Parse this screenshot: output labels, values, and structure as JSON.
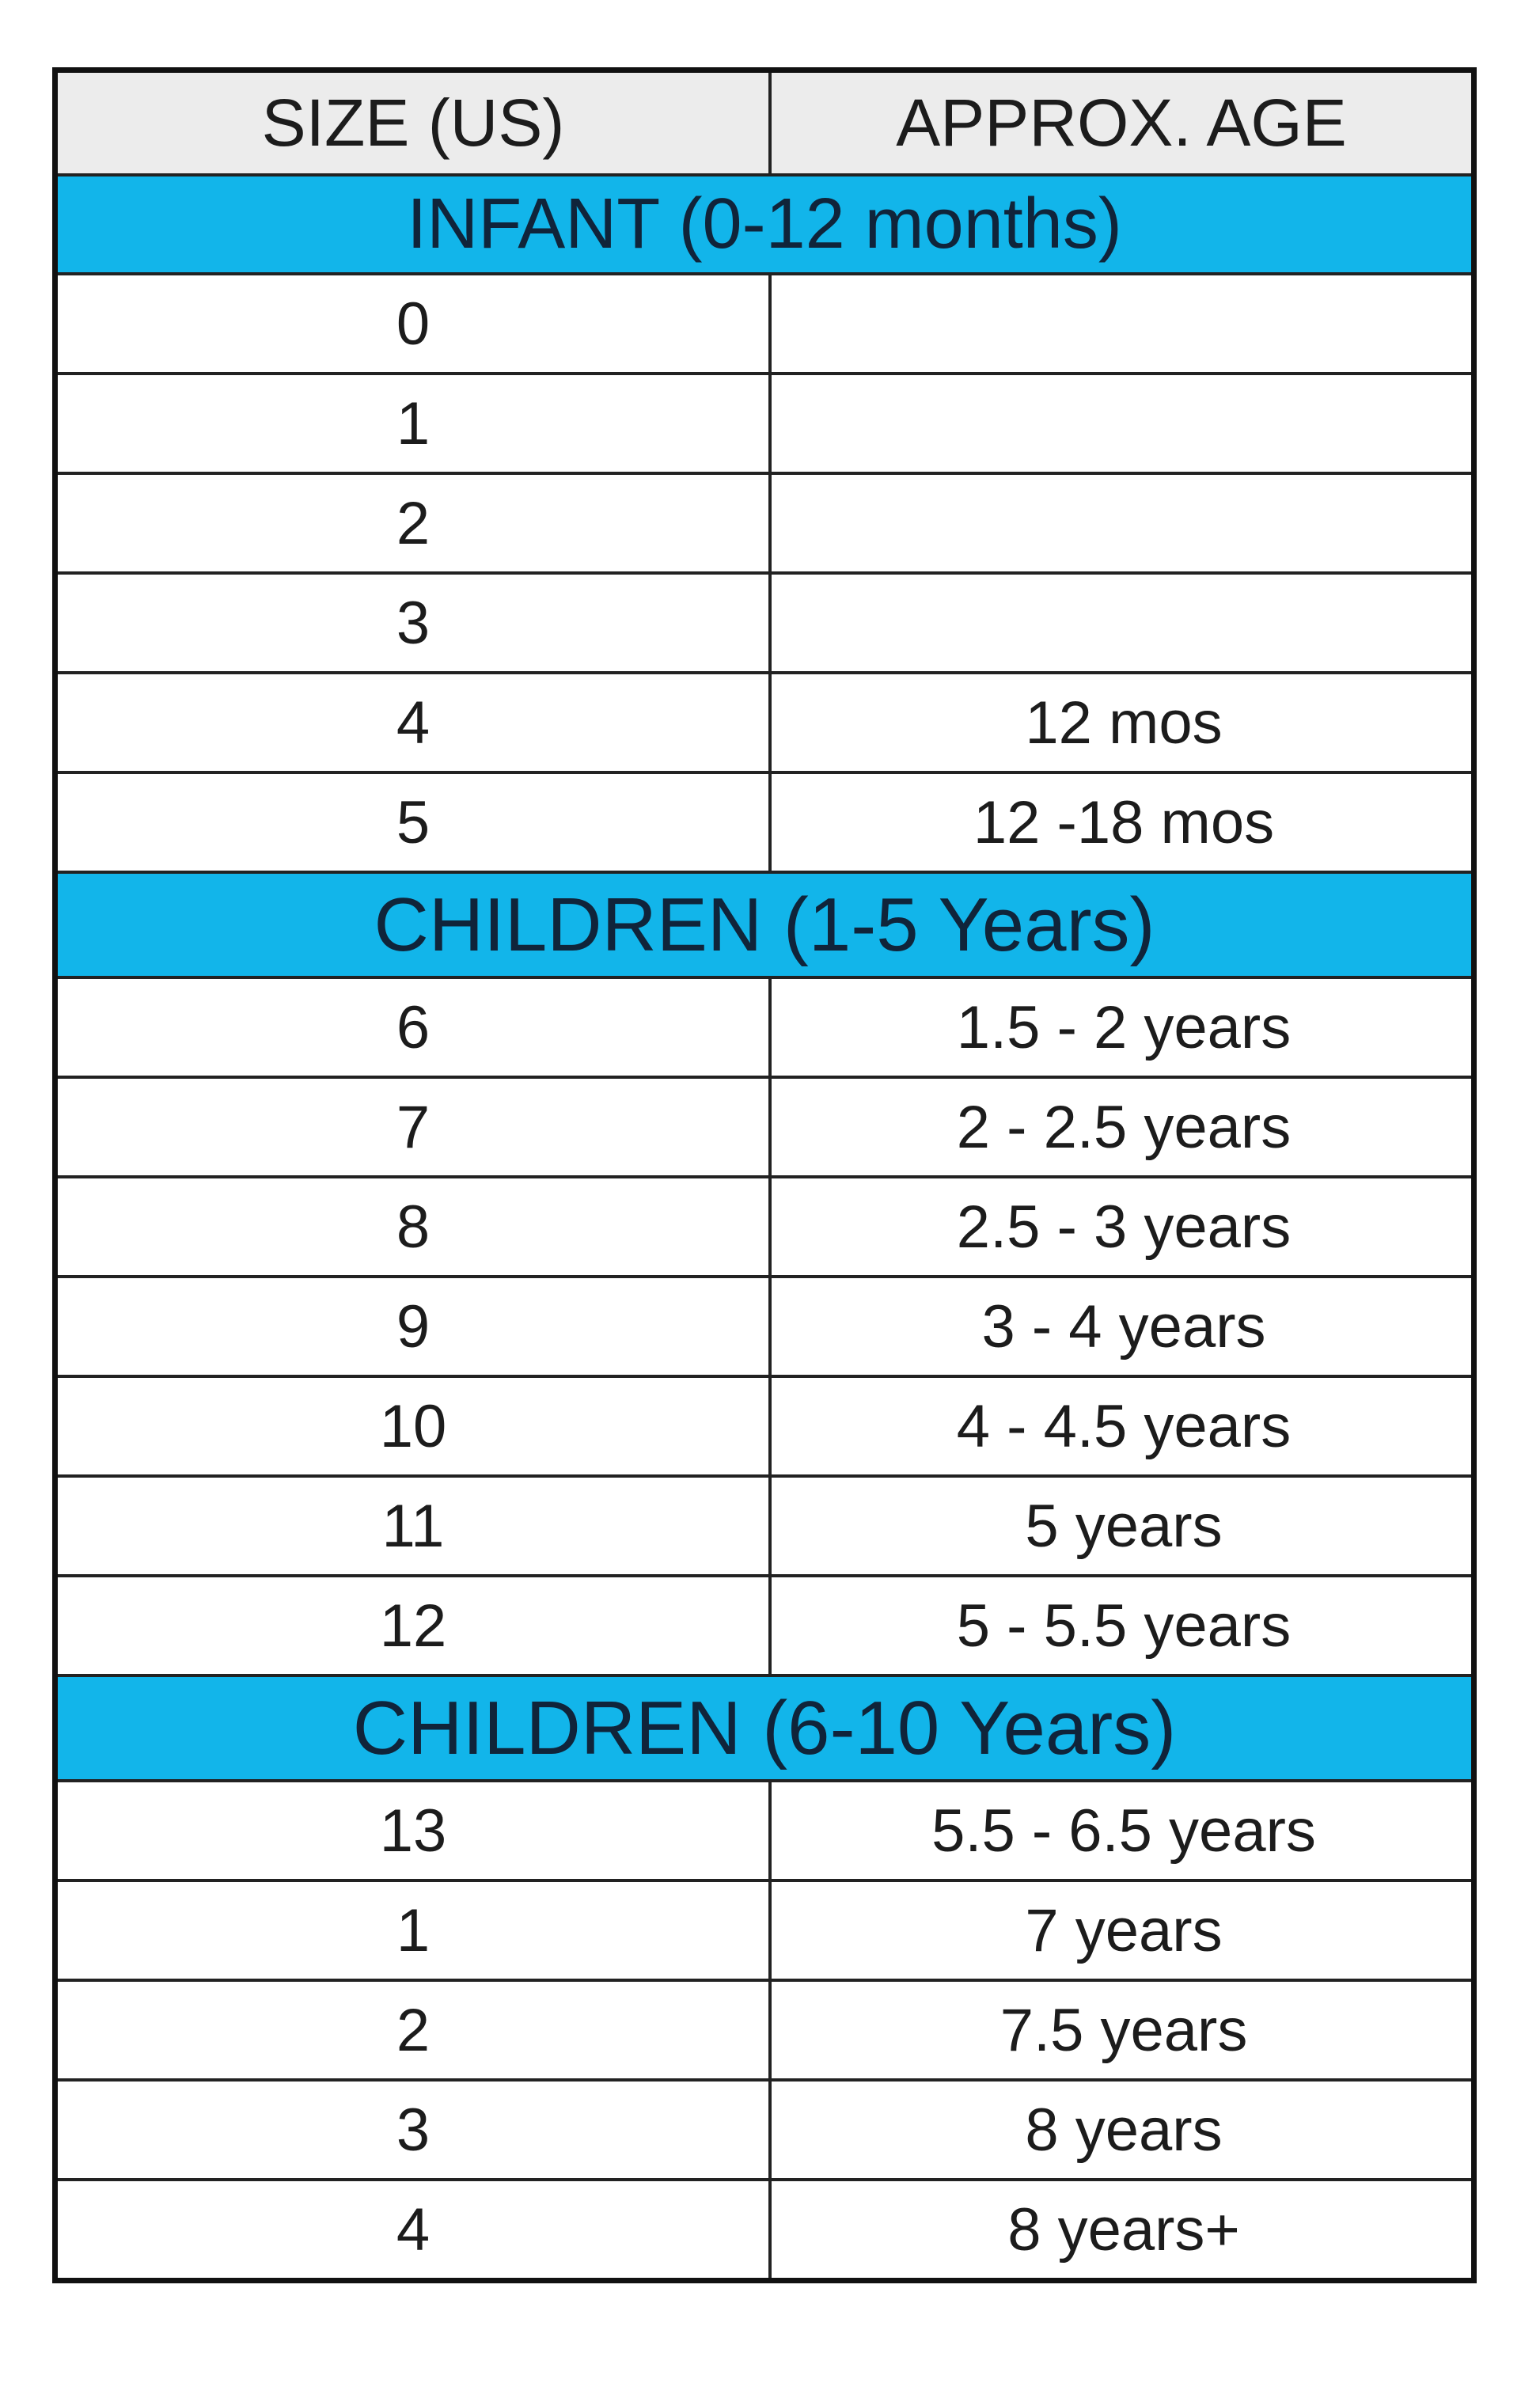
{
  "table": {
    "headers": {
      "size": "SIZE (US)",
      "age": "APPROX. AGE"
    },
    "colors": {
      "section_band": "#12b5ea",
      "header_band": "#ececec",
      "border": "#111111"
    },
    "sections": [
      {
        "title": "INFANT (0-12 months)",
        "rows": [
          {
            "size": "0",
            "age": ""
          },
          {
            "size": "1",
            "age": ""
          },
          {
            "size": "2",
            "age": ""
          },
          {
            "size": "3",
            "age": ""
          },
          {
            "size": "4",
            "age": "12 mos"
          },
          {
            "size": "5",
            "age": "12 -18 mos"
          }
        ]
      },
      {
        "title": "CHILDREN (1-5 Years)",
        "rows": [
          {
            "size": "6",
            "age": "1.5 - 2 years"
          },
          {
            "size": "7",
            "age": "2 - 2.5 years"
          },
          {
            "size": "8",
            "age": "2.5 - 3 years"
          },
          {
            "size": "9",
            "age": "3 - 4 years"
          },
          {
            "size": "10",
            "age": "4 - 4.5 years"
          },
          {
            "size": "11",
            "age": "5 years"
          },
          {
            "size": "12",
            "age": "5 - 5.5 years"
          }
        ]
      },
      {
        "title": "CHILDREN (6-10 Years)",
        "rows": [
          {
            "size": "13",
            "age": "5.5 - 6.5 years"
          },
          {
            "size": "1",
            "age": "7 years"
          },
          {
            "size": "2",
            "age": "7.5 years"
          },
          {
            "size": "3",
            "age": "8 years"
          },
          {
            "size": "4",
            "age": "8 years+"
          }
        ]
      }
    ]
  }
}
